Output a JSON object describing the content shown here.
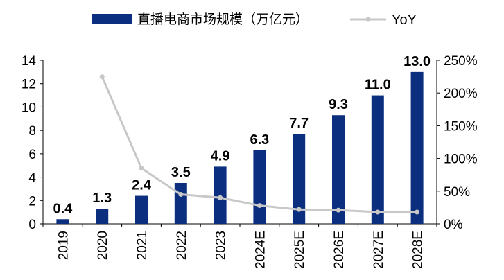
{
  "chart_data": {
    "type": "bar",
    "categories": [
      "2019",
      "2020",
      "2021",
      "2022",
      "2023",
      "2024E",
      "2025E",
      "2026E",
      "2027E",
      "2028E"
    ],
    "series": [
      {
        "name": "直播电商市场规模（万亿元）",
        "type": "bar",
        "axis": "left",
        "color": "#0b2f7e",
        "values": [
          0.4,
          1.3,
          2.4,
          3.5,
          4.9,
          6.3,
          7.7,
          9.3,
          11.0,
          13.0
        ],
        "labels": [
          "0.4",
          "1.3",
          "2.4",
          "3.5",
          "4.9",
          "6.3",
          "7.7",
          "9.3",
          "11.0",
          "13.0"
        ]
      },
      {
        "name": "YoY",
        "type": "line",
        "axis": "right",
        "color": "#c8c8c8",
        "values": [
          null,
          225,
          85,
          45,
          40,
          28,
          22,
          21,
          18,
          18
        ]
      }
    ],
    "y_left": {
      "min": 0,
      "max": 14,
      "step": 2,
      "ticks": [
        "0",
        "2",
        "4",
        "6",
        "8",
        "10",
        "12",
        "14"
      ]
    },
    "y_right": {
      "min": 0,
      "max": 250,
      "step": 50,
      "ticks": [
        "0%",
        "50%",
        "100%",
        "150%",
        "200%",
        "250%"
      ]
    },
    "legend_position": "top",
    "grid": false
  }
}
